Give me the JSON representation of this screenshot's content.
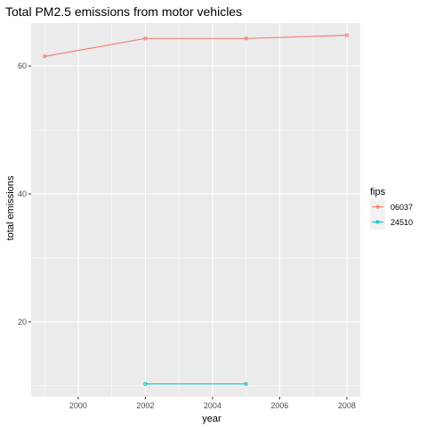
{
  "chart_data": {
    "type": "line",
    "title": "Total PM2.5 emissions from motor vehicles",
    "xlabel": "year",
    "ylabel": "total emissions",
    "xlim": [
      1998.6,
      2008.4
    ],
    "ylim": [
      8.3,
      66.7
    ],
    "x_ticks": [
      2000,
      2002,
      2004,
      2006,
      2008
    ],
    "x_tick_labels": [
      "2000",
      "2002",
      "2004",
      "2006",
      "2008"
    ],
    "y_ticks": [
      20,
      40,
      60
    ],
    "y_tick_labels": [
      "20",
      "40",
      "60"
    ],
    "grid": true,
    "legend": {
      "title": "fips",
      "placement": "right"
    },
    "series": [
      {
        "name": "06037",
        "color": "#F8766D",
        "x": [
          1999,
          2002,
          2005,
          2008
        ],
        "y": [
          61.5,
          64.3,
          64.3,
          64.8
        ]
      },
      {
        "name": "24510",
        "color": "#00BFC4",
        "x": [
          2002,
          2005
        ],
        "y": [
          10.3,
          10.3
        ]
      }
    ]
  }
}
